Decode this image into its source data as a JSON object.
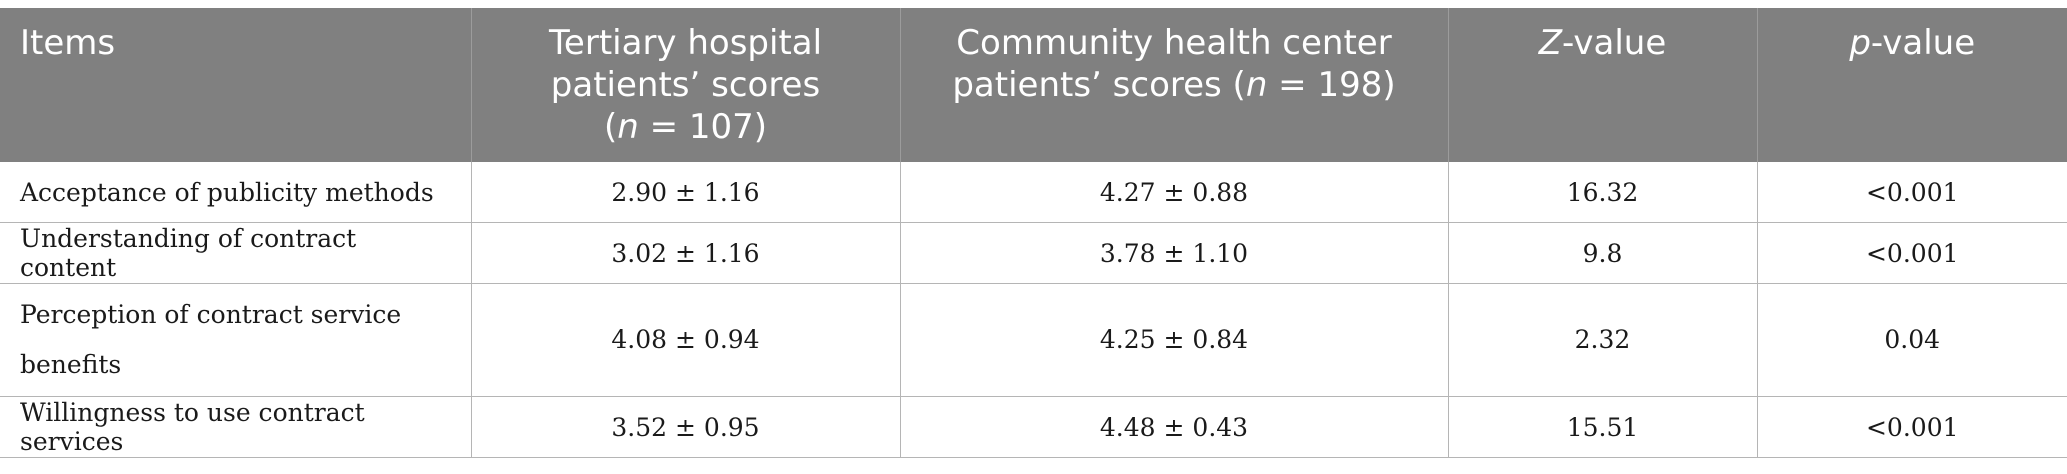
{
  "table": {
    "headers": {
      "items": "Items",
      "tertiary": {
        "line1": "Tertiary hospital",
        "line2": "patients’ scores",
        "n_var": "n",
        "n_rest": " = 107)",
        "open": "("
      },
      "community": {
        "line1": "Community health center",
        "line2_pre": "patients’ scores (",
        "n_var": "n",
        "n_rest": " = 198)"
      },
      "z": {
        "var": "Z",
        "rest": "-value"
      },
      "p": {
        "var": "p",
        "rest": "-value"
      }
    },
    "rows": [
      {
        "item": "Acceptance of publicity methods",
        "tertiary": "2.90 ± 1.16",
        "community": "4.27 ± 0.88",
        "z": "16.32",
        "p": "<0.001"
      },
      {
        "item": "Understanding of contract content",
        "tertiary": "3.02 ± 1.16",
        "community": "3.78 ± 1.10",
        "z": "9.8",
        "p": "<0.001"
      },
      {
        "item_line1": "Perception of contract service",
        "item_line2": "benefits",
        "tertiary": "4.08 ± 0.94",
        "community": "4.25 ± 0.84",
        "z": "2.32",
        "p": "0.04"
      },
      {
        "item": "Willingness to use contract services",
        "tertiary": "3.52 ± 0.95",
        "community": "4.48 ± 0.43",
        "z": "15.51",
        "p": "<0.001"
      }
    ]
  },
  "colors": {
    "header_bg": "#808080",
    "header_text": "#ffffff",
    "grid_line": "#b5b5b5"
  }
}
